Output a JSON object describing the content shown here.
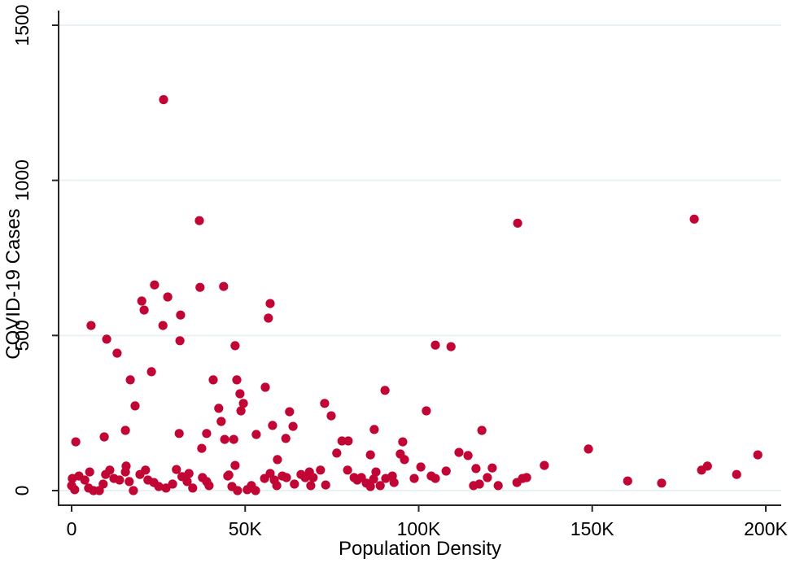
{
  "chart_data": {
    "type": "scatter",
    "xlabel": "Population Density",
    "ylabel": "COVID-19 Cases",
    "xlim": [
      0,
      200000
    ],
    "ylim": [
      0,
      1500
    ],
    "xticks": [
      {
        "value": 0,
        "label": "0"
      },
      {
        "value": 50000,
        "label": "50K"
      },
      {
        "value": 100000,
        "label": "100K"
      },
      {
        "value": 150000,
        "label": "150K"
      },
      {
        "value": 200000,
        "label": "200K"
      }
    ],
    "yticks": [
      {
        "value": 0,
        "label": "0"
      },
      {
        "value": 500,
        "label": "500"
      },
      {
        "value": 1000,
        "label": "1000"
      },
      {
        "value": 1500,
        "label": "1500"
      }
    ],
    "grid": true,
    "legend": false,
    "marker_color": "#C10535",
    "grid_color": "#E9F1F3",
    "axis_color": "#262626",
    "text_color": "#000000",
    "points": [
      [
        26500,
        1260
      ],
      [
        36800,
        870
      ],
      [
        128500,
        862
      ],
      [
        179400,
        875
      ],
      [
        23900,
        663
      ],
      [
        27700,
        624
      ],
      [
        20200,
        611
      ],
      [
        20900,
        582
      ],
      [
        31400,
        566
      ],
      [
        37000,
        655
      ],
      [
        43800,
        658
      ],
      [
        57200,
        603
      ],
      [
        56700,
        556
      ],
      [
        5600,
        532
      ],
      [
        26300,
        532
      ],
      [
        10100,
        488
      ],
      [
        31200,
        483
      ],
      [
        47100,
        467
      ],
      [
        13100,
        443
      ],
      [
        23000,
        383
      ],
      [
        16900,
        357
      ],
      [
        40800,
        357
      ],
      [
        47600,
        357
      ],
      [
        48500,
        312
      ],
      [
        55800,
        333
      ],
      [
        104800,
        469
      ],
      [
        109300,
        464
      ],
      [
        90300,
        323
      ],
      [
        148900,
        134
      ],
      [
        160200,
        31
      ],
      [
        170000,
        24
      ],
      [
        181500,
        66
      ],
      [
        183200,
        79
      ],
      [
        191600,
        52
      ],
      [
        197700,
        115
      ],
      [
        18300,
        273
      ],
      [
        42400,
        265
      ],
      [
        49500,
        281
      ],
      [
        48800,
        257
      ],
      [
        43100,
        223
      ],
      [
        9400,
        173
      ],
      [
        15500,
        194
      ],
      [
        1200,
        157
      ],
      [
        31000,
        184
      ],
      [
        38900,
        184
      ],
      [
        37500,
        136
      ],
      [
        44100,
        165
      ],
      [
        46700,
        165
      ],
      [
        53200,
        181
      ],
      [
        57900,
        210
      ],
      [
        62800,
        254
      ],
      [
        63800,
        207
      ],
      [
        61700,
        168
      ],
      [
        59300,
        100
      ],
      [
        47100,
        81
      ],
      [
        45300,
        50
      ],
      [
        72900,
        281
      ],
      [
        74800,
        241
      ],
      [
        102200,
        257
      ],
      [
        87200,
        197
      ],
      [
        118200,
        194
      ],
      [
        77900,
        160
      ],
      [
        79700,
        160
      ],
      [
        76400,
        121
      ],
      [
        86100,
        115
      ],
      [
        95400,
        157
      ],
      [
        94700,
        118
      ],
      [
        95900,
        100
      ],
      [
        111600,
        123
      ],
      [
        114200,
        113
      ],
      [
        100600,
        76
      ],
      [
        107900,
        63
      ],
      [
        116500,
        71
      ],
      [
        121200,
        73
      ],
      [
        136200,
        81
      ],
      [
        200,
        39
      ],
      [
        0,
        16
      ],
      [
        900,
        3
      ],
      [
        2100,
        47
      ],
      [
        3800,
        34
      ],
      [
        4900,
        8
      ],
      [
        6300,
        0
      ],
      [
        8000,
        0
      ],
      [
        5200,
        60
      ],
      [
        9100,
        21
      ],
      [
        9800,
        52
      ],
      [
        11000,
        66
      ],
      [
        12200,
        39
      ],
      [
        13800,
        34
      ],
      [
        15500,
        60
      ],
      [
        15700,
        79
      ],
      [
        16600,
        29
      ],
      [
        17800,
        0
      ],
      [
        19700,
        52
      ],
      [
        21300,
        66
      ],
      [
        22000,
        34
      ],
      [
        23700,
        26
      ],
      [
        25100,
        13
      ],
      [
        27200,
        8
      ],
      [
        29100,
        21
      ],
      [
        30200,
        68
      ],
      [
        31800,
        45
      ],
      [
        33300,
        29
      ],
      [
        34900,
        8
      ],
      [
        33800,
        55
      ],
      [
        37700,
        42
      ],
      [
        38900,
        29
      ],
      [
        39600,
        16
      ],
      [
        45000,
        47
      ],
      [
        46200,
        13
      ],
      [
        47800,
        0
      ],
      [
        50600,
        3
      ],
      [
        51800,
        16
      ],
      [
        53000,
        0
      ],
      [
        55600,
        39
      ],
      [
        57200,
        55
      ],
      [
        58400,
        34
      ],
      [
        59100,
        16
      ],
      [
        60700,
        47
      ],
      [
        61900,
        42
      ],
      [
        64200,
        21
      ],
      [
        66100,
        52
      ],
      [
        67300,
        42
      ],
      [
        68500,
        60
      ],
      [
        69600,
        42
      ],
      [
        71700,
        66
      ],
      [
        68900,
        16
      ],
      [
        73200,
        18
      ],
      [
        79500,
        66
      ],
      [
        81400,
        42
      ],
      [
        82300,
        34
      ],
      [
        83500,
        42
      ],
      [
        84900,
        24
      ],
      [
        86100,
        13
      ],
      [
        87000,
        37
      ],
      [
        87700,
        60
      ],
      [
        88900,
        16
      ],
      [
        90500,
        39
      ],
      [
        92400,
        47
      ],
      [
        92900,
        26
      ],
      [
        98700,
        39
      ],
      [
        103600,
        47
      ],
      [
        104800,
        39
      ],
      [
        115800,
        16
      ],
      [
        117500,
        21
      ],
      [
        119800,
        42
      ],
      [
        122900,
        16
      ],
      [
        128300,
        26
      ],
      [
        129900,
        39
      ],
      [
        131100,
        42
      ]
    ]
  }
}
